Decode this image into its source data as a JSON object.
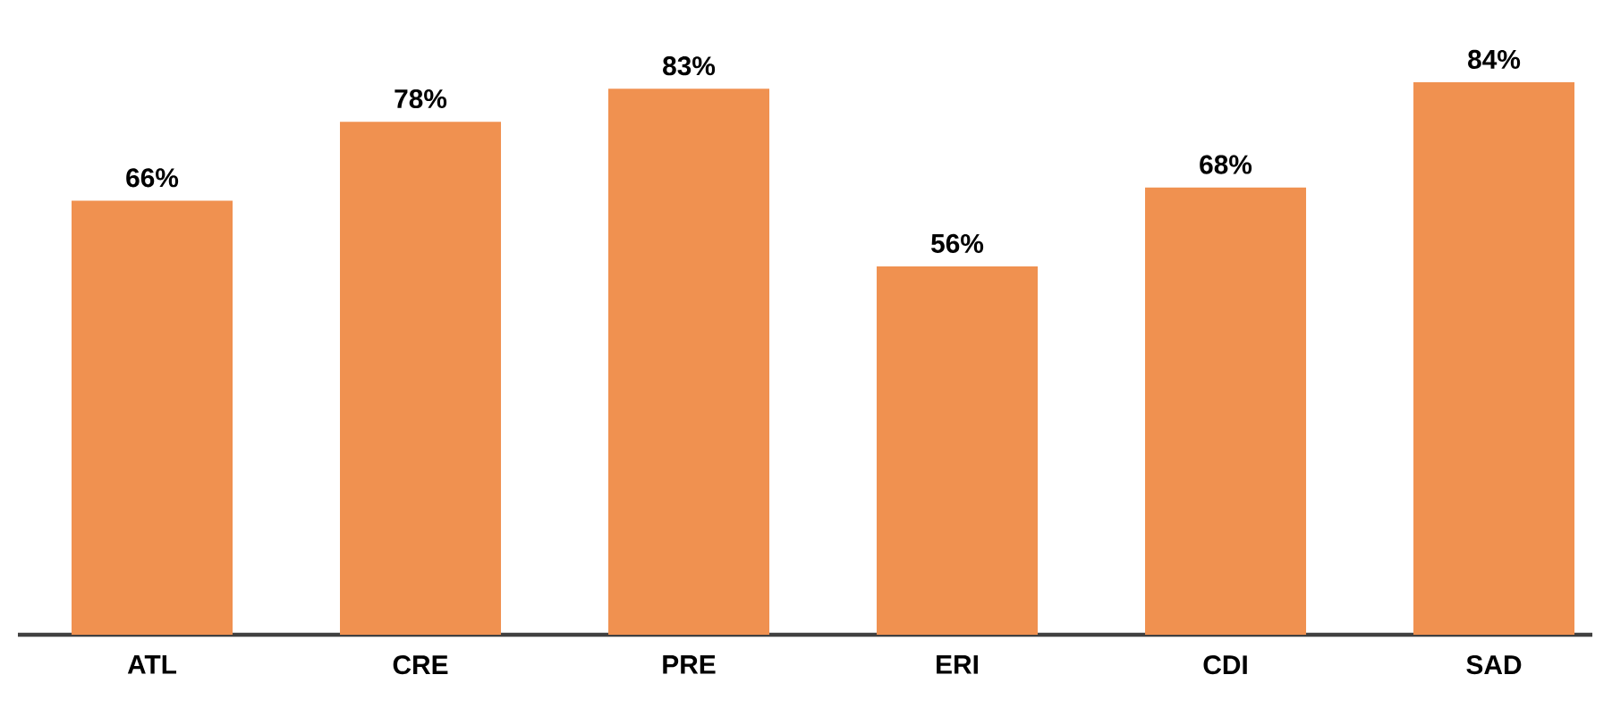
{
  "chart_data": {
    "type": "bar",
    "categories": [
      "ATL",
      "CRE",
      "PRE",
      "ERI",
      "CDI",
      "SAD"
    ],
    "values": [
      66,
      78,
      83,
      56,
      68,
      84
    ],
    "value_labels": [
      "66%",
      "78%",
      "83%",
      "56%",
      "68%",
      "84%"
    ],
    "color": "#f09150"
  }
}
